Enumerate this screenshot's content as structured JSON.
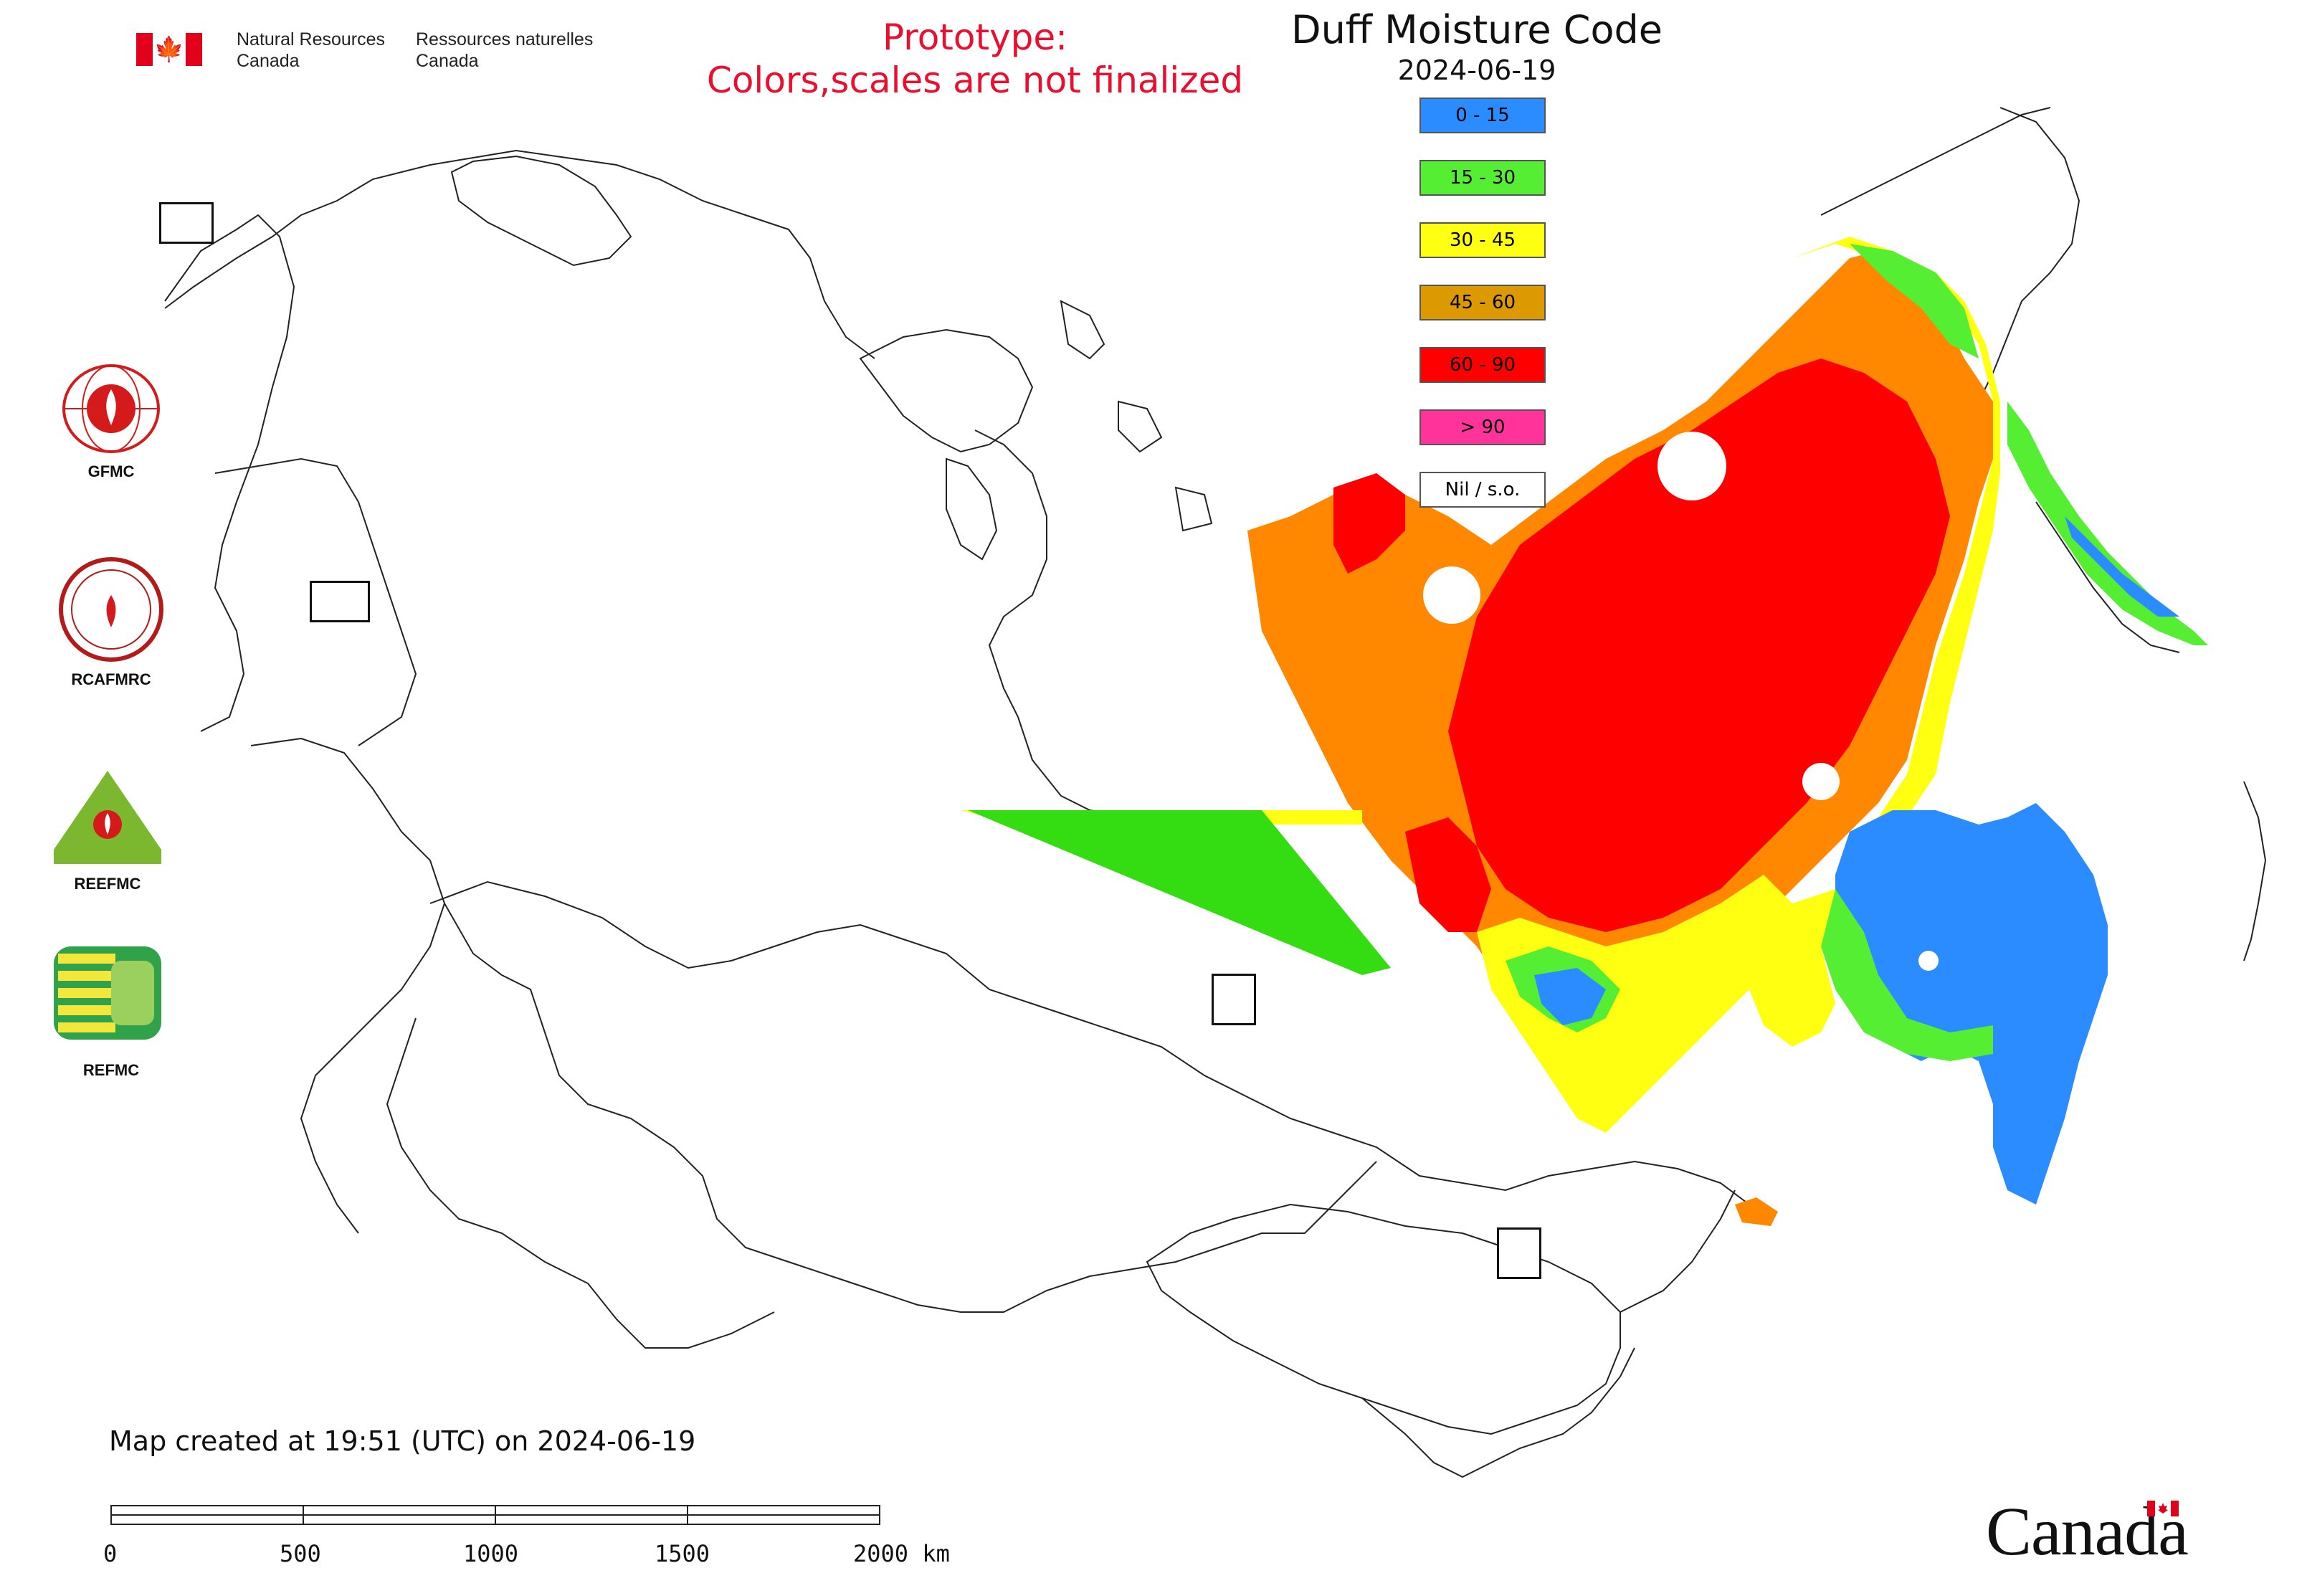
{
  "header": {
    "gov_en_line1": "Natural Resources",
    "gov_en_line2": "Canada",
    "gov_fr_line1": "Ressources naturelles",
    "gov_fr_line2": "Canada",
    "prototype_line1": "Prototype:",
    "prototype_line2": "Colors,scales are not finalized"
  },
  "map": {
    "title": "Duff Moisture Code",
    "date": "2024-06-19",
    "legend": [
      {
        "label": "0 - 15",
        "color": "#2b8cff"
      },
      {
        "label": "15 - 30",
        "color": "#55ee33"
      },
      {
        "label": "30 - 45",
        "color": "#ffff11"
      },
      {
        "label": "45 - 60",
        "color": "#dd9900"
      },
      {
        "label": "60 - 90",
        "color": "#ff0000"
      },
      {
        "label": "> 90",
        "color": "#ff3399"
      },
      {
        "label": "Nil / s.o.",
        "color": "#ffffff"
      }
    ],
    "orange_fill": "#ff8800"
  },
  "agencies": [
    {
      "label": "GFMC"
    },
    {
      "label": "RCAFMRC"
    },
    {
      "label": "REEFMC"
    },
    {
      "label": "REFMC"
    }
  ],
  "footer": {
    "created": "Map created at 19:51 (UTC) on 2024-06-19",
    "scale_ticks": [
      "0",
      "500",
      "1000",
      "1500",
      "2000 km"
    ],
    "canada_wordmark": "Canada"
  }
}
